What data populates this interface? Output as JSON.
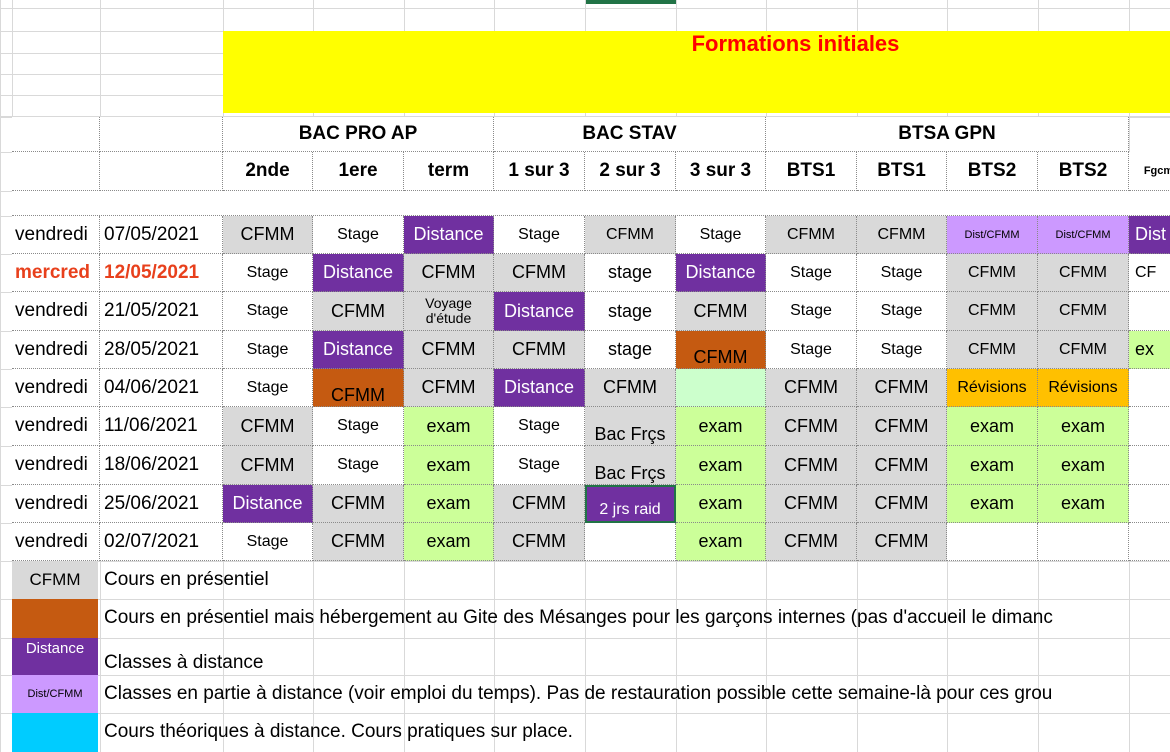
{
  "title": "Formations initiales",
  "groups": [
    {
      "label": "BAC PRO AP"
    },
    {
      "label": "BAC STAV"
    },
    {
      "label": "BTSA GPN"
    }
  ],
  "subheaders": [
    "2nde",
    "1ere",
    "term",
    "1 sur 3",
    "2 sur 3",
    "3 sur 3",
    "BTS1",
    "BTS1",
    "BTS2",
    "BTS2",
    "Fgcm"
  ],
  "colors": {
    "grey": "#d9d9d9",
    "purple": "#7030a0",
    "lilac": "#cc99ff",
    "orange": "#c55a11",
    "green": "#ccff99",
    "mint": "#ccffcc",
    "amber": "#ffc000",
    "cyan": "#00ccff",
    "yellow": "#ffff00",
    "red": "#ff0000",
    "white": "#ffffff"
  },
  "rows": [
    {
      "day": "vendredi",
      "date": "07/05/2021",
      "highlight": false,
      "cells": [
        {
          "t": "CFMM",
          "c": "grey",
          "s": "n"
        },
        {
          "t": "Stage",
          "c": "white",
          "s": "s"
        },
        {
          "t": "Distance",
          "c": "purple",
          "s": "n"
        },
        {
          "t": "Stage",
          "c": "white",
          "s": "s"
        },
        {
          "t": "CFMM",
          "c": "grey",
          "s": "s"
        },
        {
          "t": "Stage",
          "c": "white",
          "s": "s"
        },
        {
          "t": "CFMM",
          "c": "grey",
          "s": "s"
        },
        {
          "t": "CFMM",
          "c": "grey",
          "s": "s"
        },
        {
          "t": "Dist/CFMM",
          "c": "lilac",
          "s": "xs"
        },
        {
          "t": "Dist/CFMM",
          "c": "lilac",
          "s": "xs"
        },
        {
          "t": "Dist",
          "c": "purple",
          "s": "n"
        }
      ]
    },
    {
      "day": "mercred",
      "date": "12/05/2021",
      "highlight": true,
      "cells": [
        {
          "t": "Stage",
          "c": "white",
          "s": "s"
        },
        {
          "t": "Distance",
          "c": "purple",
          "s": "n"
        },
        {
          "t": "CFMM",
          "c": "grey",
          "s": "n"
        },
        {
          "t": "CFMM",
          "c": "grey",
          "s": "n"
        },
        {
          "t": "stage",
          "c": "white",
          "s": "n"
        },
        {
          "t": "Distance",
          "c": "purple",
          "s": "n"
        },
        {
          "t": "Stage",
          "c": "white",
          "s": "s"
        },
        {
          "t": "Stage",
          "c": "white",
          "s": "s"
        },
        {
          "t": "CFMM",
          "c": "grey",
          "s": "s"
        },
        {
          "t": "CFMM",
          "c": "grey",
          "s": "s"
        },
        {
          "t": "CF",
          "c": "white",
          "s": "s"
        }
      ]
    },
    {
      "day": "vendredi",
      "date": "21/05/2021",
      "highlight": false,
      "cells": [
        {
          "t": "Stage",
          "c": "white",
          "s": "s"
        },
        {
          "t": "CFMM",
          "c": "grey",
          "s": "n"
        },
        {
          "t": "Voyage\nd'étude",
          "c": "grey",
          "s": "v"
        },
        {
          "t": "Distance",
          "c": "purple",
          "s": "n"
        },
        {
          "t": "stage",
          "c": "white",
          "s": "n"
        },
        {
          "t": "CFMM",
          "c": "grey",
          "s": "n"
        },
        {
          "t": "Stage",
          "c": "white",
          "s": "s"
        },
        {
          "t": "Stage",
          "c": "white",
          "s": "s"
        },
        {
          "t": "CFMM",
          "c": "grey",
          "s": "s"
        },
        {
          "t": "CFMM",
          "c": "grey",
          "s": "s"
        },
        {
          "t": "",
          "c": "white",
          "s": "s"
        }
      ]
    },
    {
      "day": "vendredi",
      "date": "28/05/2021",
      "highlight": false,
      "cells": [
        {
          "t": "Stage",
          "c": "white",
          "s": "s"
        },
        {
          "t": "Distance",
          "c": "purple",
          "s": "n"
        },
        {
          "t": "CFMM",
          "c": "grey",
          "s": "n"
        },
        {
          "t": "CFMM",
          "c": "grey",
          "s": "n"
        },
        {
          "t": "stage",
          "c": "white",
          "s": "n"
        },
        {
          "t": "CFMM",
          "c": "orange",
          "s": "n"
        },
        {
          "t": "Stage",
          "c": "white",
          "s": "s"
        },
        {
          "t": "Stage",
          "c": "white",
          "s": "s"
        },
        {
          "t": "CFMM",
          "c": "grey",
          "s": "s"
        },
        {
          "t": "CFMM",
          "c": "grey",
          "s": "s"
        },
        {
          "t": "ex",
          "c": "green",
          "s": "n"
        }
      ]
    },
    {
      "day": "vendredi",
      "date": "04/06/2021",
      "highlight": false,
      "cells": [
        {
          "t": "Stage",
          "c": "white",
          "s": "s"
        },
        {
          "t": "CFMM",
          "c": "orange",
          "s": "n"
        },
        {
          "t": "CFMM",
          "c": "grey",
          "s": "n"
        },
        {
          "t": "Distance",
          "c": "purple",
          "s": "n"
        },
        {
          "t": "CFMM",
          "c": "grey",
          "s": "n"
        },
        {
          "t": "",
          "c": "mint",
          "s": "n"
        },
        {
          "t": "CFMM",
          "c": "grey",
          "s": "n"
        },
        {
          "t": "CFMM",
          "c": "grey",
          "s": "n"
        },
        {
          "t": "Révisions",
          "c": "amber",
          "s": "s"
        },
        {
          "t": "Révisions",
          "c": "amber",
          "s": "s"
        },
        {
          "t": "",
          "c": "white",
          "s": "s"
        }
      ]
    },
    {
      "day": "vendredi",
      "date": "11/06/2021",
      "highlight": false,
      "cells": [
        {
          "t": "CFMM",
          "c": "grey",
          "s": "n"
        },
        {
          "t": "Stage",
          "c": "white",
          "s": "s"
        },
        {
          "t": "exam",
          "c": "green",
          "s": "n"
        },
        {
          "t": "Stage",
          "c": "white",
          "s": "s"
        },
        {
          "t": "Bac Frçs",
          "c": "grey",
          "s": "n"
        },
        {
          "t": "exam",
          "c": "green",
          "s": "n"
        },
        {
          "t": "CFMM",
          "c": "grey",
          "s": "n"
        },
        {
          "t": "CFMM",
          "c": "grey",
          "s": "n"
        },
        {
          "t": "exam",
          "c": "green",
          "s": "n"
        },
        {
          "t": "exam",
          "c": "green",
          "s": "n"
        },
        {
          "t": "",
          "c": "white",
          "s": "s"
        }
      ]
    },
    {
      "day": "vendredi",
      "date": "18/06/2021",
      "highlight": false,
      "cells": [
        {
          "t": "CFMM",
          "c": "grey",
          "s": "n"
        },
        {
          "t": "Stage",
          "c": "white",
          "s": "s"
        },
        {
          "t": "exam",
          "c": "green",
          "s": "n"
        },
        {
          "t": "Stage",
          "c": "white",
          "s": "s"
        },
        {
          "t": "Bac Frçs",
          "c": "grey",
          "s": "n"
        },
        {
          "t": "exam",
          "c": "green",
          "s": "n"
        },
        {
          "t": "CFMM",
          "c": "grey",
          "s": "n"
        },
        {
          "t": "CFMM",
          "c": "grey",
          "s": "n"
        },
        {
          "t": "exam",
          "c": "green",
          "s": "n"
        },
        {
          "t": "exam",
          "c": "green",
          "s": "n"
        },
        {
          "t": "",
          "c": "white",
          "s": "s"
        }
      ]
    },
    {
      "day": "vendredi",
      "date": "25/06/2021",
      "highlight": false,
      "cells": [
        {
          "t": "Distance",
          "c": "purple",
          "s": "n"
        },
        {
          "t": "CFMM",
          "c": "grey",
          "s": "n"
        },
        {
          "t": "exam",
          "c": "green",
          "s": "n"
        },
        {
          "t": "CFMM",
          "c": "grey",
          "s": "n"
        },
        {
          "t": "2 jrs raid",
          "c": "purple",
          "s": "s"
        },
        {
          "t": "exam",
          "c": "green",
          "s": "n"
        },
        {
          "t": "CFMM",
          "c": "grey",
          "s": "n"
        },
        {
          "t": "CFMM",
          "c": "grey",
          "s": "n"
        },
        {
          "t": "exam",
          "c": "green",
          "s": "n"
        },
        {
          "t": "exam",
          "c": "green",
          "s": "n"
        },
        {
          "t": "",
          "c": "white",
          "s": "s"
        }
      ]
    },
    {
      "day": "vendredi",
      "date": "02/07/2021",
      "highlight": false,
      "cells": [
        {
          "t": "Stage",
          "c": "white",
          "s": "s"
        },
        {
          "t": "CFMM",
          "c": "grey",
          "s": "n"
        },
        {
          "t": "exam",
          "c": "green",
          "s": "n"
        },
        {
          "t": "CFMM",
          "c": "grey",
          "s": "n"
        },
        {
          "t": "",
          "c": "white",
          "s": "n"
        },
        {
          "t": "exam",
          "c": "green",
          "s": "n"
        },
        {
          "t": "CFMM",
          "c": "grey",
          "s": "n"
        },
        {
          "t": "CFMM",
          "c": "grey",
          "s": "n"
        },
        {
          "t": "",
          "c": "white",
          "s": "s"
        },
        {
          "t": "",
          "c": "white",
          "s": "s"
        },
        {
          "t": "",
          "c": "white",
          "s": "s"
        }
      ]
    }
  ],
  "legend": [
    {
      "swatch_text": "CFMM",
      "color": "grey",
      "desc": "Cours en présentiel"
    },
    {
      "swatch_text": "",
      "color": "orange",
      "desc": "Cours en présentiel mais hébergement au Gite des Mésanges pour les garçons internes (pas d'accueil le dimanc"
    },
    {
      "swatch_text": "Distance",
      "color": "purple",
      "desc": "Classes à distance"
    },
    {
      "swatch_text": "Dist/CFMM",
      "color": "lilac",
      "desc": "Classes en partie à distance (voir emploi du temps). Pas de restauration possible cette semaine-là pour ces grou"
    },
    {
      "swatch_text": "",
      "color": "cyan",
      "desc": "Cours théoriques à distance. Cours pratiques sur place."
    }
  ]
}
